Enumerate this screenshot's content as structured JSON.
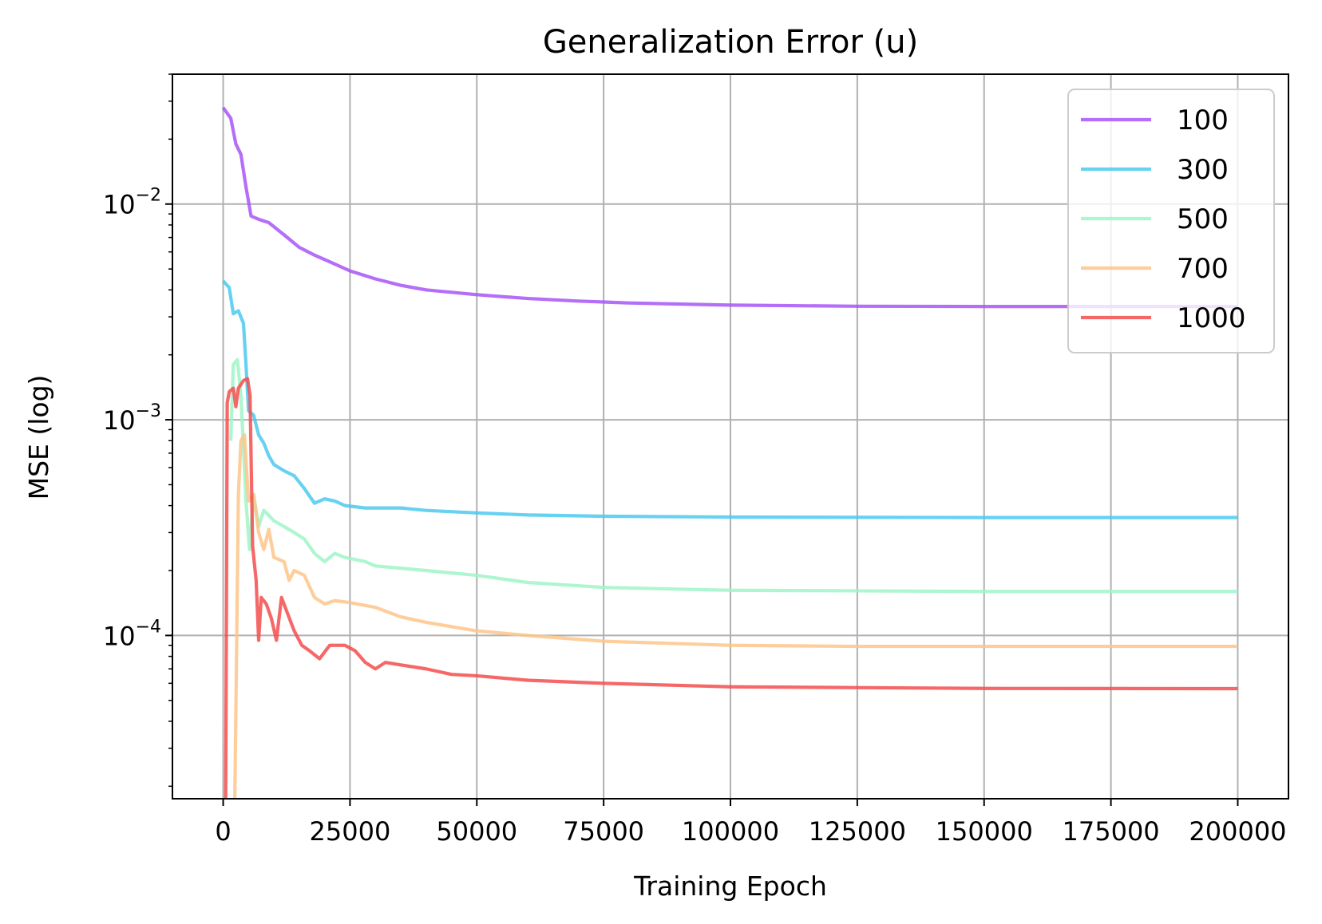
{
  "chart_data": {
    "type": "line",
    "title": "Generalization Error (u)",
    "xlabel": "Training Epoch",
    "ylabel": "MSE (log)",
    "xlim": [
      -10000,
      210000
    ],
    "ylim": [
      1.75e-05,
      0.04
    ],
    "yscale": "log",
    "grid": true,
    "legend_position": "top-right",
    "x_ticks": [
      0,
      25000,
      50000,
      75000,
      100000,
      125000,
      150000,
      175000,
      200000
    ],
    "x_tick_labels": [
      "0",
      "25000",
      "50000",
      "75000",
      "100000",
      "125000",
      "150000",
      "175000",
      "200000"
    ],
    "y_ticks": [
      {
        "value": 0.01,
        "base": "10",
        "exp": "−2"
      },
      {
        "value": 0.001,
        "base": "10",
        "exp": "−3"
      },
      {
        "value": 0.0001,
        "base": "10",
        "exp": "−4"
      }
    ],
    "series": [
      {
        "name": "100",
        "color": "#a855f7",
        "points": [
          [
            0,
            0.028
          ],
          [
            1500,
            0.025
          ],
          [
            2500,
            0.019
          ],
          [
            3500,
            0.017
          ],
          [
            4500,
            0.012
          ],
          [
            5500,
            0.0088
          ],
          [
            7000,
            0.0085
          ],
          [
            9000,
            0.0082
          ],
          [
            12000,
            0.0072
          ],
          [
            15000,
            0.0063
          ],
          [
            18000,
            0.0058
          ],
          [
            21000,
            0.0054
          ],
          [
            25000,
            0.0049
          ],
          [
            30000,
            0.0045
          ],
          [
            35000,
            0.0042
          ],
          [
            40000,
            0.004
          ],
          [
            50000,
            0.0038
          ],
          [
            60000,
            0.00365
          ],
          [
            70000,
            0.00355
          ],
          [
            80000,
            0.00348
          ],
          [
            100000,
            0.0034
          ],
          [
            125000,
            0.00336
          ],
          [
            150000,
            0.00335
          ],
          [
            175000,
            0.00335
          ],
          [
            200000,
            0.00335
          ]
        ]
      },
      {
        "name": "300",
        "color": "#4cc9f0",
        "points": [
          [
            0,
            0.0044
          ],
          [
            1200,
            0.0041
          ],
          [
            2000,
            0.0031
          ],
          [
            3000,
            0.0032
          ],
          [
            4000,
            0.0028
          ],
          [
            4500,
            0.0018
          ],
          [
            5000,
            0.0011
          ],
          [
            6000,
            0.00105
          ],
          [
            7000,
            0.00085
          ],
          [
            8000,
            0.00078
          ],
          [
            9000,
            0.00068
          ],
          [
            10000,
            0.00062
          ],
          [
            12000,
            0.00058
          ],
          [
            14000,
            0.00055
          ],
          [
            16000,
            0.00048
          ],
          [
            18000,
            0.00041
          ],
          [
            20000,
            0.00043
          ],
          [
            22000,
            0.00042
          ],
          [
            24000,
            0.0004
          ],
          [
            28000,
            0.00039
          ],
          [
            35000,
            0.00039
          ],
          [
            40000,
            0.00038
          ],
          [
            50000,
            0.00037
          ],
          [
            60000,
            0.000362
          ],
          [
            75000,
            0.000357
          ],
          [
            100000,
            0.000354
          ],
          [
            150000,
            0.000352
          ],
          [
            200000,
            0.000352
          ]
        ]
      },
      {
        "name": "500",
        "color": "#9ff5c8",
        "points": [
          [
            1500,
            0.0008
          ],
          [
            2000,
            0.0018
          ],
          [
            2800,
            0.0019
          ],
          [
            3500,
            0.0013
          ],
          [
            4500,
            0.00042
          ],
          [
            5200,
            0.00025
          ],
          [
            6000,
            0.00045
          ],
          [
            7000,
            0.00032
          ],
          [
            8000,
            0.00038
          ],
          [
            9000,
            0.00036
          ],
          [
            10000,
            0.00034
          ],
          [
            12000,
            0.00032
          ],
          [
            14000,
            0.0003
          ],
          [
            16000,
            0.00028
          ],
          [
            18000,
            0.00024
          ],
          [
            20000,
            0.00022
          ],
          [
            22000,
            0.00024
          ],
          [
            24000,
            0.00023
          ],
          [
            28000,
            0.00022
          ],
          [
            30000,
            0.00021
          ],
          [
            35000,
            0.000205
          ],
          [
            40000,
            0.0002
          ],
          [
            50000,
            0.00019
          ],
          [
            60000,
            0.000176
          ],
          [
            75000,
            0.000167
          ],
          [
            100000,
            0.000162
          ],
          [
            150000,
            0.00016
          ],
          [
            200000,
            0.00016
          ]
        ]
      },
      {
        "name": "700",
        "color": "#fdc68a",
        "points": [
          [
            2300,
            1.75e-05
          ],
          [
            3000,
            0.00045
          ],
          [
            3500,
            0.0008
          ],
          [
            4200,
            0.00085
          ],
          [
            5000,
            0.00042
          ],
          [
            6000,
            0.00045
          ],
          [
            7000,
            0.0003
          ],
          [
            8000,
            0.00025
          ],
          [
            9000,
            0.00031
          ],
          [
            10000,
            0.00023
          ],
          [
            12000,
            0.00022
          ],
          [
            13000,
            0.00018
          ],
          [
            14000,
            0.0002
          ],
          [
            16000,
            0.00019
          ],
          [
            18000,
            0.00015
          ],
          [
            20000,
            0.00014
          ],
          [
            22000,
            0.000145
          ],
          [
            25000,
            0.000142
          ],
          [
            30000,
            0.000135
          ],
          [
            35000,
            0.000122
          ],
          [
            40000,
            0.000115
          ],
          [
            50000,
            0.000105
          ],
          [
            60000,
            0.0001
          ],
          [
            75000,
            9.4e-05
          ],
          [
            100000,
            9e-05
          ],
          [
            125000,
            8.9e-05
          ],
          [
            150000,
            8.9e-05
          ],
          [
            200000,
            8.9e-05
          ]
        ]
      },
      {
        "name": "1000",
        "color": "#f44e4e",
        "points": [
          [
            500,
            1.75e-05
          ],
          [
            800,
            0.0012
          ],
          [
            1200,
            0.00135
          ],
          [
            2000,
            0.0014
          ],
          [
            2500,
            0.00115
          ],
          [
            3000,
            0.0014
          ],
          [
            4000,
            0.00152
          ],
          [
            4800,
            0.00155
          ],
          [
            5300,
            0.0013
          ],
          [
            5800,
            0.00026
          ],
          [
            6500,
            0.00018
          ],
          [
            7000,
            9.5e-05
          ],
          [
            7500,
            0.00015
          ],
          [
            8500,
            0.00014
          ],
          [
            9500,
            0.00012
          ],
          [
            10500,
            9.5e-05
          ],
          [
            11500,
            0.00015
          ],
          [
            12500,
            0.00013
          ],
          [
            14000,
            0.000105
          ],
          [
            15500,
            9e-05
          ],
          [
            17000,
            8.5e-05
          ],
          [
            19000,
            7.8e-05
          ],
          [
            21000,
            9e-05
          ],
          [
            24000,
            9e-05
          ],
          [
            26000,
            8.5e-05
          ],
          [
            28000,
            7.5e-05
          ],
          [
            30000,
            7e-05
          ],
          [
            32000,
            7.5e-05
          ],
          [
            35000,
            7.3e-05
          ],
          [
            40000,
            7e-05
          ],
          [
            45000,
            6.6e-05
          ],
          [
            50000,
            6.5e-05
          ],
          [
            60000,
            6.2e-05
          ],
          [
            75000,
            6e-05
          ],
          [
            100000,
            5.78e-05
          ],
          [
            150000,
            5.68e-05
          ],
          [
            200000,
            5.67e-05
          ]
        ]
      }
    ]
  }
}
